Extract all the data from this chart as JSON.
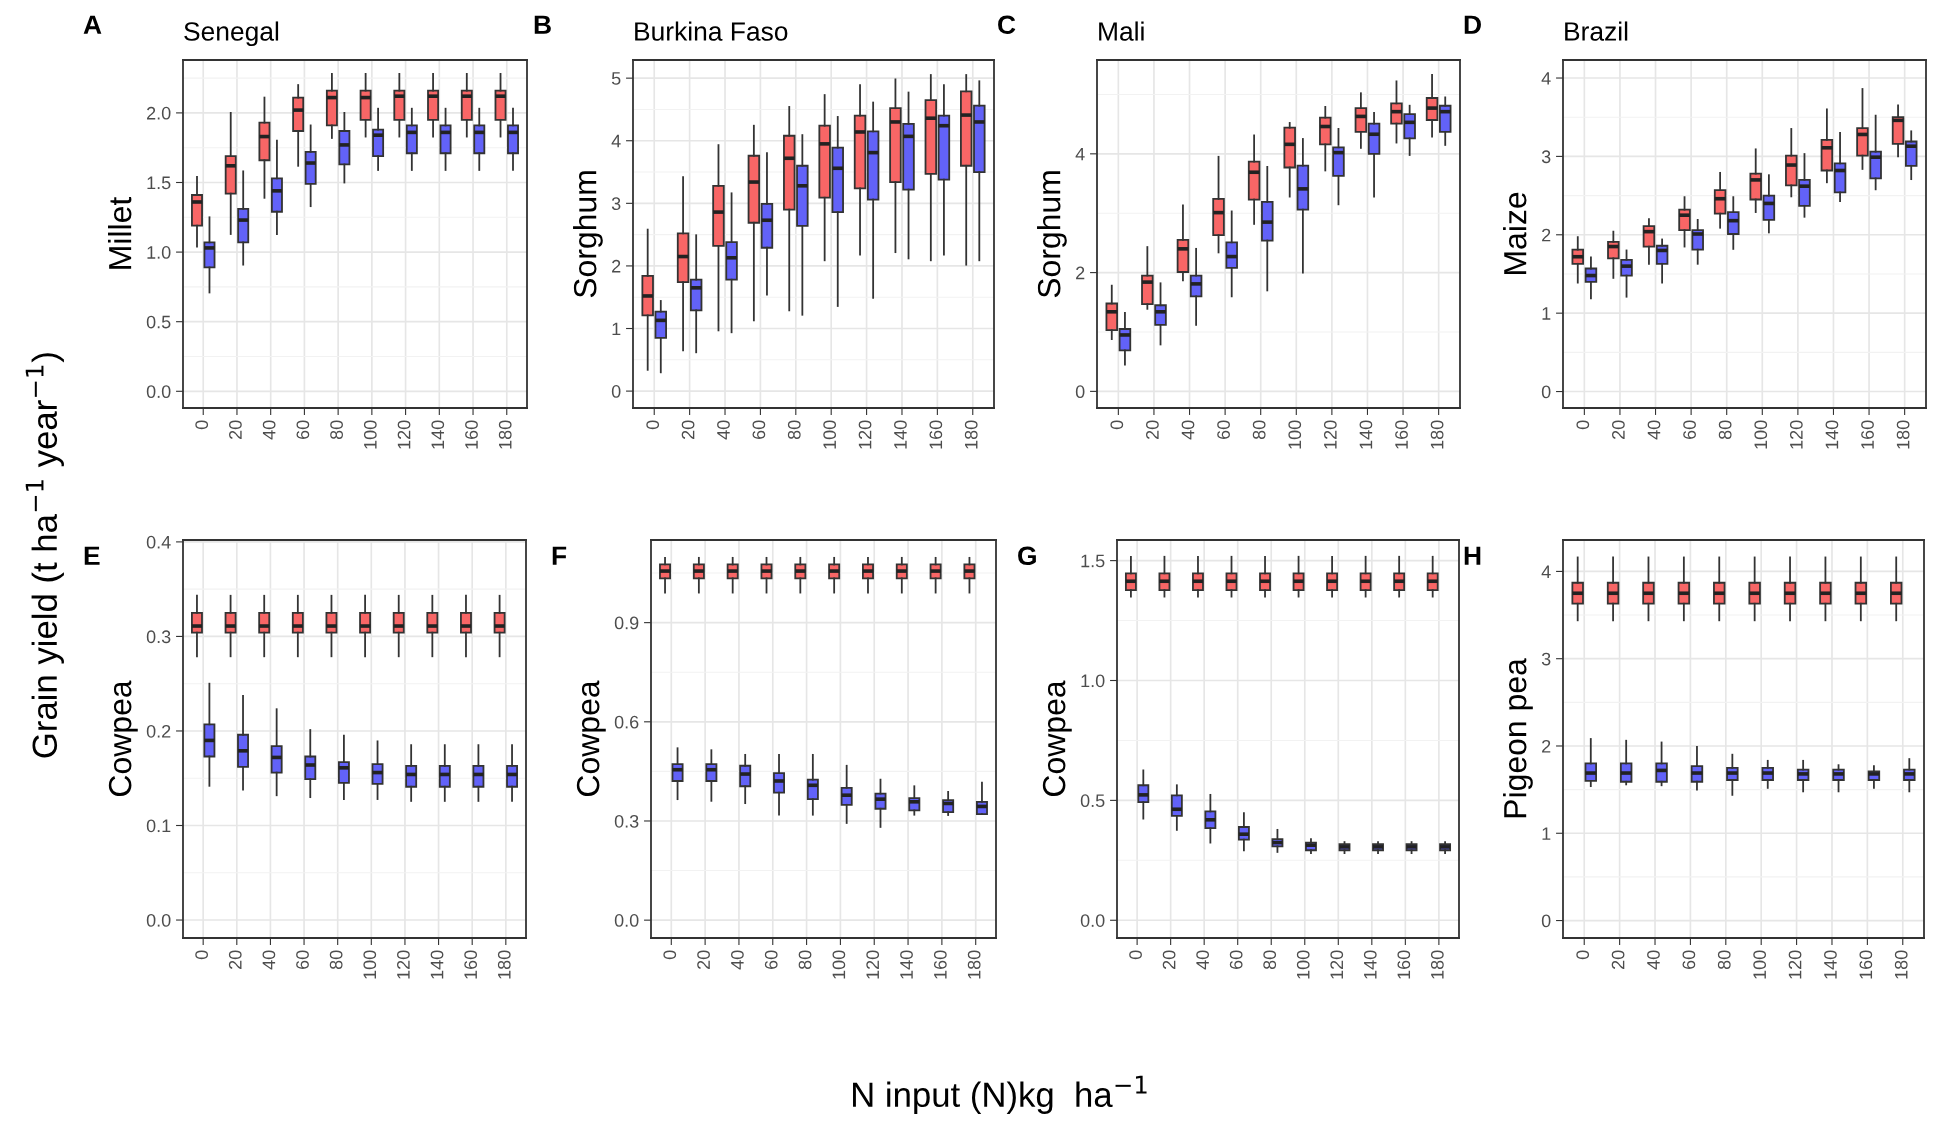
{
  "chart_data": [
    {
      "type": "box",
      "title": "Senegal",
      "ylabel": "Millet",
      "annotations": [
        "A",
        "Grain yield (t ha$^{−1}$ year$^{−1}$)",
        "N input (N)kg  ha$^{−1}$"
      ],
      "categories": [
        "0",
        "20",
        "40",
        "60",
        "80",
        "100",
        "120",
        "140",
        "160",
        "180"
      ],
      "ylim": [
        -0.12,
        2.38
      ],
      "yticks": [
        {
          "value": 0,
          "label": "0.0"
        },
        {
          "value": 0.5,
          "label": "0.5"
        },
        {
          "value": 1,
          "label": "1.0"
        },
        {
          "value": 1.5,
          "label": "1.5"
        },
        {
          "value": 2,
          "label": "2.0"
        }
      ],
      "grid": true,
      "series": [
        {
          "color": "#f86666",
          "boxes": [
            {
              "low": 1.04,
              "q1": 1.19,
              "median": 1.36,
              "q3": 1.41,
              "high": 1.54
            },
            {
              "low": 1.13,
              "q1": 1.42,
              "median": 1.62,
              "q3": 1.69,
              "high": 2.0
            },
            {
              "low": 1.39,
              "q1": 1.66,
              "median": 1.83,
              "q3": 1.93,
              "high": 2.11
            },
            {
              "low": 1.62,
              "q1": 1.87,
              "median": 2.02,
              "q3": 2.11,
              "high": 2.2
            },
            {
              "low": 1.82,
              "q1": 1.91,
              "median": 2.11,
              "q3": 2.16,
              "high": 2.28
            },
            {
              "low": 1.83,
              "q1": 1.95,
              "median": 2.11,
              "q3": 2.16,
              "high": 2.28
            },
            {
              "low": 1.83,
              "q1": 1.95,
              "median": 2.12,
              "q3": 2.16,
              "high": 2.28
            },
            {
              "low": 1.83,
              "q1": 1.95,
              "median": 2.12,
              "q3": 2.16,
              "high": 2.28
            },
            {
              "low": 1.83,
              "q1": 1.95,
              "median": 2.12,
              "q3": 2.16,
              "high": 2.28
            },
            {
              "low": 1.83,
              "q1": 1.95,
              "median": 2.12,
              "q3": 2.16,
              "high": 2.28
            }
          ]
        },
        {
          "color": "#6262f8",
          "boxes": [
            {
              "low": 0.71,
              "q1": 0.89,
              "median": 1.03,
              "q3": 1.07,
              "high": 1.25
            },
            {
              "low": 0.91,
              "q1": 1.07,
              "median": 1.23,
              "q3": 1.31,
              "high": 1.58
            },
            {
              "low": 1.13,
              "q1": 1.29,
              "median": 1.44,
              "q3": 1.53,
              "high": 1.8
            },
            {
              "low": 1.33,
              "q1": 1.49,
              "median": 1.64,
              "q3": 1.72,
              "high": 1.91
            },
            {
              "low": 1.5,
              "q1": 1.63,
              "median": 1.77,
              "q3": 1.87,
              "high": 2.0
            },
            {
              "low": 1.59,
              "q1": 1.69,
              "median": 1.84,
              "q3": 1.88,
              "high": 2.03
            },
            {
              "low": 1.59,
              "q1": 1.71,
              "median": 1.86,
              "q3": 1.91,
              "high": 2.03
            },
            {
              "low": 1.59,
              "q1": 1.71,
              "median": 1.86,
              "q3": 1.91,
              "high": 2.03
            },
            {
              "low": 1.59,
              "q1": 1.71,
              "median": 1.86,
              "q3": 1.91,
              "high": 2.03
            },
            {
              "low": 1.59,
              "q1": 1.71,
              "median": 1.86,
              "q3": 1.91,
              "high": 2.03
            }
          ]
        }
      ]
    },
    {
      "type": "box",
      "title": "Burkina Faso",
      "ylabel": "Sorghum",
      "annotations": [
        "B"
      ],
      "categories": [
        "0",
        "20",
        "40",
        "60",
        "80",
        "100",
        "120",
        "140",
        "160",
        "180"
      ],
      "ylim": [
        -0.27,
        5.29
      ],
      "yticks": [
        0,
        1,
        2,
        3,
        4,
        5
      ],
      "grid": true,
      "series": [
        {
          "color": "#f86666",
          "boxes": [
            {
              "low": 0.34,
              "q1": 1.21,
              "median": 1.52,
              "q3": 1.84,
              "high": 2.58
            },
            {
              "low": 0.65,
              "q1": 1.74,
              "median": 2.15,
              "q3": 2.52,
              "high": 3.42
            },
            {
              "low": 0.97,
              "q1": 2.32,
              "median": 2.86,
              "q3": 3.28,
              "high": 3.93
            },
            {
              "low": 1.13,
              "q1": 2.69,
              "median": 3.34,
              "q3": 3.76,
              "high": 4.24
            },
            {
              "low": 1.29,
              "q1": 2.9,
              "median": 3.72,
              "q3": 4.08,
              "high": 4.54
            },
            {
              "low": 2.09,
              "q1": 3.09,
              "median": 3.95,
              "q3": 4.24,
              "high": 4.73
            },
            {
              "low": 2.18,
              "q1": 3.24,
              "median": 4.14,
              "q3": 4.4,
              "high": 4.89
            },
            {
              "low": 2.22,
              "q1": 3.34,
              "median": 4.3,
              "q3": 4.52,
              "high": 4.98
            },
            {
              "low": 2.09,
              "q1": 3.47,
              "median": 4.36,
              "q3": 4.65,
              "high": 5.05
            },
            {
              "low": 2.02,
              "q1": 3.6,
              "median": 4.41,
              "q3": 4.79,
              "high": 5.05
            }
          ]
        },
        {
          "color": "#6262f8",
          "boxes": [
            {
              "low": 0.3,
              "q1": 0.85,
              "median": 1.13,
              "q3": 1.27,
              "high": 1.44
            },
            {
              "low": 0.62,
              "q1": 1.29,
              "median": 1.65,
              "q3": 1.78,
              "high": 2.49
            },
            {
              "low": 0.94,
              "q1": 1.78,
              "median": 2.13,
              "q3": 2.38,
              "high": 3.16
            },
            {
              "low": 1.54,
              "q1": 2.29,
              "median": 2.73,
              "q3": 2.99,
              "high": 3.8
            },
            {
              "low": 1.22,
              "q1": 2.64,
              "median": 3.28,
              "q3": 3.6,
              "high": 4.09
            },
            {
              "low": 1.36,
              "q1": 2.86,
              "median": 3.56,
              "q3": 3.89,
              "high": 4.38
            },
            {
              "low": 1.49,
              "q1": 3.06,
              "median": 3.81,
              "q3": 4.15,
              "high": 4.61
            },
            {
              "low": 2.12,
              "q1": 3.22,
              "median": 4.07,
              "q3": 4.27,
              "high": 4.77
            },
            {
              "low": 2.18,
              "q1": 3.38,
              "median": 4.24,
              "q3": 4.4,
              "high": 4.89
            },
            {
              "low": 2.09,
              "q1": 3.5,
              "median": 4.3,
              "q3": 4.56,
              "high": 4.95
            }
          ]
        }
      ]
    },
    {
      "type": "box",
      "title": "Mali",
      "ylabel": "Sorghum",
      "annotations": [
        "C"
      ],
      "categories": [
        "0",
        "20",
        "40",
        "60",
        "80",
        "100",
        "120",
        "140",
        "160",
        "180"
      ],
      "ylim": [
        -0.28,
        5.58
      ],
      "yticks": [
        0,
        2,
        4
      ],
      "grid": true,
      "series": [
        {
          "color": "#f86666",
          "boxes": [
            {
              "low": 0.88,
              "q1": 1.03,
              "median": 1.34,
              "q3": 1.48,
              "high": 1.78
            },
            {
              "low": 1.39,
              "q1": 1.47,
              "median": 1.84,
              "q3": 1.95,
              "high": 2.43
            },
            {
              "low": 1.87,
              "q1": 2.01,
              "median": 2.4,
              "q3": 2.55,
              "high": 3.13
            },
            {
              "low": 2.34,
              "q1": 2.63,
              "median": 3.01,
              "q3": 3.24,
              "high": 3.95
            },
            {
              "low": 2.82,
              "q1": 3.23,
              "median": 3.69,
              "q3": 3.87,
              "high": 4.31
            },
            {
              "low": 3.28,
              "q1": 3.77,
              "median": 4.16,
              "q3": 4.44,
              "high": 4.52
            },
            {
              "low": 3.72,
              "q1": 4.16,
              "median": 4.46,
              "q3": 4.61,
              "high": 4.79
            },
            {
              "low": 4.1,
              "q1": 4.37,
              "median": 4.63,
              "q3": 4.77,
              "high": 5.02
            },
            {
              "low": 4.19,
              "q1": 4.51,
              "median": 4.71,
              "q3": 4.85,
              "high": 5.22
            },
            {
              "low": 4.29,
              "q1": 4.57,
              "median": 4.77,
              "q3": 4.94,
              "high": 5.33
            }
          ]
        },
        {
          "color": "#6262f8",
          "boxes": [
            {
              "low": 0.45,
              "q1": 0.69,
              "median": 0.95,
              "q3": 1.05,
              "high": 1.32
            },
            {
              "low": 0.79,
              "q1": 1.12,
              "median": 1.34,
              "q3": 1.45,
              "high": 1.82
            },
            {
              "low": 1.12,
              "q1": 1.6,
              "median": 1.81,
              "q3": 1.95,
              "high": 2.4
            },
            {
              "low": 1.6,
              "q1": 2.08,
              "median": 2.27,
              "q3": 2.51,
              "high": 3.03
            },
            {
              "low": 1.7,
              "q1": 2.54,
              "median": 2.85,
              "q3": 3.19,
              "high": 3.78
            },
            {
              "low": 2.0,
              "q1": 3.06,
              "median": 3.41,
              "q3": 3.8,
              "high": 4.25
            },
            {
              "low": 3.15,
              "q1": 3.63,
              "median": 4.02,
              "q3": 4.11,
              "high": 4.42
            },
            {
              "low": 3.28,
              "q1": 4.0,
              "median": 4.33,
              "q3": 4.51,
              "high": 4.69
            },
            {
              "low": 3.98,
              "q1": 4.26,
              "median": 4.53,
              "q3": 4.67,
              "high": 4.81
            },
            {
              "low": 4.15,
              "q1": 4.37,
              "median": 4.71,
              "q3": 4.81,
              "high": 4.95
            }
          ]
        }
      ]
    },
    {
      "type": "box",
      "title": "Brazil",
      "ylabel": "Maize",
      "annotations": [
        "D"
      ],
      "categories": [
        "0",
        "20",
        "40",
        "60",
        "80",
        "100",
        "120",
        "140",
        "160",
        "180"
      ],
      "ylim": [
        -0.21,
        4.23
      ],
      "yticks": [
        0,
        1,
        2,
        3,
        4
      ],
      "grid": true,
      "series": [
        {
          "color": "#f86666",
          "boxes": [
            {
              "low": 1.39,
              "q1": 1.63,
              "median": 1.72,
              "q3": 1.81,
              "high": 1.97
            },
            {
              "low": 1.45,
              "q1": 1.7,
              "median": 1.85,
              "q3": 1.91,
              "high": 2.04
            },
            {
              "low": 1.63,
              "q1": 1.85,
              "median": 2.04,
              "q3": 2.11,
              "high": 2.2
            },
            {
              "low": 1.85,
              "q1": 2.06,
              "median": 2.25,
              "q3": 2.32,
              "high": 2.48
            },
            {
              "low": 2.09,
              "q1": 2.27,
              "median": 2.46,
              "q3": 2.57,
              "high": 2.79
            },
            {
              "low": 2.29,
              "q1": 2.45,
              "median": 2.7,
              "q3": 2.78,
              "high": 3.09
            },
            {
              "low": 2.49,
              "q1": 2.63,
              "median": 2.89,
              "q3": 3.01,
              "high": 3.35
            },
            {
              "low": 2.67,
              "q1": 2.82,
              "median": 3.11,
              "q3": 3.21,
              "high": 3.6
            },
            {
              "low": 2.84,
              "q1": 3.01,
              "median": 3.28,
              "q3": 3.36,
              "high": 3.86
            },
            {
              "low": 3.0,
              "q1": 3.16,
              "median": 3.46,
              "q3": 3.5,
              "high": 3.65
            }
          ]
        },
        {
          "color": "#6262f8",
          "boxes": [
            {
              "low": 1.19,
              "q1": 1.4,
              "median": 1.48,
              "q3": 1.57,
              "high": 1.71
            },
            {
              "low": 1.21,
              "q1": 1.48,
              "median": 1.6,
              "q3": 1.68,
              "high": 1.8
            },
            {
              "low": 1.39,
              "q1": 1.63,
              "median": 1.8,
              "q3": 1.86,
              "high": 1.94
            },
            {
              "low": 1.63,
              "q1": 1.81,
              "median": 2.01,
              "q3": 2.06,
              "high": 2.19
            },
            {
              "low": 1.82,
              "q1": 2.01,
              "median": 2.18,
              "q3": 2.29,
              "high": 2.48
            },
            {
              "low": 2.03,
              "q1": 2.19,
              "median": 2.4,
              "q3": 2.5,
              "high": 2.76
            },
            {
              "low": 2.23,
              "q1": 2.37,
              "median": 2.62,
              "q3": 2.7,
              "high": 3.03
            },
            {
              "low": 2.43,
              "q1": 2.54,
              "median": 2.82,
              "q3": 2.91,
              "high": 3.3
            },
            {
              "low": 2.58,
              "q1": 2.72,
              "median": 2.99,
              "q3": 3.06,
              "high": 3.52
            },
            {
              "low": 2.71,
              "q1": 2.88,
              "median": 3.13,
              "q3": 3.19,
              "high": 3.32
            }
          ]
        }
      ]
    },
    {
      "type": "box",
      "ylabel": "Cowpea",
      "annotations": [
        "E"
      ],
      "categories": [
        "0",
        "20",
        "40",
        "60",
        "80",
        "100",
        "120",
        "140",
        "160",
        "180"
      ],
      "ylim": [
        -0.019,
        0.402
      ],
      "yticks": [
        {
          "value": 0,
          "label": "0.0"
        },
        {
          "value": 0.1,
          "label": "0.1"
        },
        {
          "value": 0.2,
          "label": "0.2"
        },
        {
          "value": 0.3,
          "label": "0.3"
        },
        {
          "value": 0.4,
          "label": "0.4"
        }
      ],
      "grid": true,
      "series": [
        {
          "color": "#f86666",
          "boxes": [
            {
              "low": 0.279,
              "q1": 0.304,
              "median": 0.311,
              "q3": 0.325,
              "high": 0.343
            },
            {
              "low": 0.279,
              "q1": 0.304,
              "median": 0.311,
              "q3": 0.325,
              "high": 0.343
            },
            {
              "low": 0.279,
              "q1": 0.304,
              "median": 0.311,
              "q3": 0.325,
              "high": 0.343
            },
            {
              "low": 0.279,
              "q1": 0.304,
              "median": 0.311,
              "q3": 0.325,
              "high": 0.343
            },
            {
              "low": 0.279,
              "q1": 0.304,
              "median": 0.311,
              "q3": 0.325,
              "high": 0.343
            },
            {
              "low": 0.279,
              "q1": 0.304,
              "median": 0.311,
              "q3": 0.325,
              "high": 0.343
            },
            {
              "low": 0.279,
              "q1": 0.304,
              "median": 0.311,
              "q3": 0.325,
              "high": 0.343
            },
            {
              "low": 0.279,
              "q1": 0.304,
              "median": 0.311,
              "q3": 0.325,
              "high": 0.343
            },
            {
              "low": 0.279,
              "q1": 0.304,
              "median": 0.311,
              "q3": 0.325,
              "high": 0.343
            },
            {
              "low": 0.279,
              "q1": 0.304,
              "median": 0.311,
              "q3": 0.325,
              "high": 0.343
            }
          ]
        },
        {
          "color": "#6262f8",
          "boxes": [
            {
              "low": 0.142,
              "q1": 0.173,
              "median": 0.19,
              "q3": 0.207,
              "high": 0.25
            },
            {
              "low": 0.138,
              "q1": 0.162,
              "median": 0.179,
              "q3": 0.196,
              "high": 0.237
            },
            {
              "low": 0.132,
              "q1": 0.156,
              "median": 0.172,
              "q3": 0.184,
              "high": 0.223
            },
            {
              "low": 0.13,
              "q1": 0.149,
              "median": 0.164,
              "q3": 0.173,
              "high": 0.201
            },
            {
              "low": 0.128,
              "q1": 0.145,
              "median": 0.161,
              "q3": 0.167,
              "high": 0.195
            },
            {
              "low": 0.128,
              "q1": 0.144,
              "median": 0.156,
              "q3": 0.165,
              "high": 0.189
            },
            {
              "low": 0.126,
              "q1": 0.141,
              "median": 0.154,
              "q3": 0.163,
              "high": 0.185
            },
            {
              "low": 0.126,
              "q1": 0.141,
              "median": 0.154,
              "q3": 0.163,
              "high": 0.185
            },
            {
              "low": 0.126,
              "q1": 0.141,
              "median": 0.154,
              "q3": 0.163,
              "high": 0.185
            },
            {
              "low": 0.126,
              "q1": 0.141,
              "median": 0.154,
              "q3": 0.163,
              "high": 0.185
            }
          ]
        }
      ]
    },
    {
      "type": "box",
      "ylabel": "Cowpea",
      "annotations": [
        "F"
      ],
      "categories": [
        "0",
        "20",
        "40",
        "60",
        "80",
        "100",
        "120",
        "140",
        "160",
        "180"
      ],
      "ylim": [
        -0.054,
        1.15
      ],
      "yticks": [
        {
          "value": 0,
          "label": "0.0"
        },
        {
          "value": 0.3,
          "label": "0.3"
        },
        {
          "value": 0.6,
          "label": "0.6"
        },
        {
          "value": 0.9,
          "label": "0.9"
        }
      ],
      "grid": true,
      "series": [
        {
          "color": "#f86666",
          "boxes": [
            {
              "low": 0.991,
              "q1": 1.034,
              "median": 1.056,
              "q3": 1.076,
              "high": 1.096
            },
            {
              "low": 0.991,
              "q1": 1.034,
              "median": 1.056,
              "q3": 1.076,
              "high": 1.096
            },
            {
              "low": 0.991,
              "q1": 1.034,
              "median": 1.056,
              "q3": 1.076,
              "high": 1.096
            },
            {
              "low": 0.991,
              "q1": 1.034,
              "median": 1.056,
              "q3": 1.076,
              "high": 1.096
            },
            {
              "low": 0.991,
              "q1": 1.034,
              "median": 1.056,
              "q3": 1.076,
              "high": 1.096
            },
            {
              "low": 0.991,
              "q1": 1.034,
              "median": 1.056,
              "q3": 1.076,
              "high": 1.096
            },
            {
              "low": 0.991,
              "q1": 1.034,
              "median": 1.056,
              "q3": 1.076,
              "high": 1.096
            },
            {
              "low": 0.991,
              "q1": 1.034,
              "median": 1.056,
              "q3": 1.076,
              "high": 1.096
            },
            {
              "low": 0.991,
              "q1": 1.034,
              "median": 1.056,
              "q3": 1.076,
              "high": 1.096
            },
            {
              "low": 0.991,
              "q1": 1.034,
              "median": 1.056,
              "q3": 1.076,
              "high": 1.096
            }
          ]
        },
        {
          "color": "#6262f8",
          "boxes": [
            {
              "low": 0.366,
              "q1": 0.421,
              "median": 0.455,
              "q3": 0.472,
              "high": 0.52
            },
            {
              "low": 0.361,
              "q1": 0.421,
              "median": 0.455,
              "q3": 0.472,
              "high": 0.514
            },
            {
              "low": 0.354,
              "q1": 0.405,
              "median": 0.442,
              "q3": 0.467,
              "high": 0.5
            },
            {
              "low": 0.319,
              "q1": 0.386,
              "median": 0.421,
              "q3": 0.445,
              "high": 0.5
            },
            {
              "low": 0.319,
              "q1": 0.366,
              "median": 0.408,
              "q3": 0.425,
              "high": 0.5
            },
            {
              "low": 0.294,
              "q1": 0.349,
              "median": 0.378,
              "q3": 0.4,
              "high": 0.467
            },
            {
              "low": 0.282,
              "q1": 0.337,
              "median": 0.366,
              "q3": 0.383,
              "high": 0.425
            },
            {
              "low": 0.319,
              "q1": 0.332,
              "median": 0.358,
              "q3": 0.369,
              "high": 0.405
            },
            {
              "low": 0.318,
              "q1": 0.327,
              "median": 0.353,
              "q3": 0.363,
              "high": 0.388
            },
            {
              "low": 0.321,
              "q1": 0.321,
              "median": 0.344,
              "q3": 0.358,
              "high": 0.416
            }
          ]
        }
      ]
    },
    {
      "type": "box",
      "ylabel": "Cowpea",
      "annotations": [
        "G"
      ],
      "categories": [
        "0",
        "20",
        "40",
        "60",
        "80",
        "100",
        "120",
        "140",
        "160",
        "180"
      ],
      "ylim": [
        -0.074,
        1.586
      ],
      "yticks": [
        {
          "value": 0,
          "label": "0.0"
        },
        {
          "value": 0.5,
          "label": "0.5"
        },
        {
          "value": 1,
          "label": "1.0"
        },
        {
          "value": 1.5,
          "label": "1.5"
        }
      ],
      "grid": true,
      "series": [
        {
          "color": "#f86666",
          "boxes": [
            {
              "low": 1.35,
              "q1": 1.377,
              "median": 1.414,
              "q3": 1.447,
              "high": 1.516
            },
            {
              "low": 1.35,
              "q1": 1.377,
              "median": 1.414,
              "q3": 1.447,
              "high": 1.516
            },
            {
              "low": 1.35,
              "q1": 1.377,
              "median": 1.414,
              "q3": 1.447,
              "high": 1.516
            },
            {
              "low": 1.35,
              "q1": 1.377,
              "median": 1.414,
              "q3": 1.447,
              "high": 1.516
            },
            {
              "low": 1.35,
              "q1": 1.377,
              "median": 1.414,
              "q3": 1.447,
              "high": 1.516
            },
            {
              "low": 1.35,
              "q1": 1.377,
              "median": 1.414,
              "q3": 1.447,
              "high": 1.516
            },
            {
              "low": 1.35,
              "q1": 1.377,
              "median": 1.414,
              "q3": 1.447,
              "high": 1.516
            },
            {
              "low": 1.35,
              "q1": 1.377,
              "median": 1.414,
              "q3": 1.447,
              "high": 1.516
            },
            {
              "low": 1.35,
              "q1": 1.377,
              "median": 1.414,
              "q3": 1.447,
              "high": 1.516
            },
            {
              "low": 1.35,
              "q1": 1.377,
              "median": 1.414,
              "q3": 1.447,
              "high": 1.516
            }
          ]
        },
        {
          "color": "#6262f8",
          "boxes": [
            {
              "low": 0.424,
              "q1": 0.493,
              "median": 0.523,
              "q3": 0.563,
              "high": 0.625
            },
            {
              "low": 0.377,
              "q1": 0.435,
              "median": 0.463,
              "q3": 0.521,
              "high": 0.563
            },
            {
              "low": 0.324,
              "q1": 0.384,
              "median": 0.419,
              "q3": 0.454,
              "high": 0.523
            },
            {
              "low": 0.292,
              "q1": 0.336,
              "median": 0.359,
              "q3": 0.389,
              "high": 0.447
            },
            {
              "low": 0.285,
              "q1": 0.308,
              "median": 0.324,
              "q3": 0.338,
              "high": 0.377
            },
            {
              "low": 0.28,
              "q1": 0.292,
              "median": 0.313,
              "q3": 0.324,
              "high": 0.338
            },
            {
              "low": 0.28,
              "q1": 0.292,
              "median": 0.306,
              "q3": 0.317,
              "high": 0.326
            },
            {
              "low": 0.28,
              "q1": 0.292,
              "median": 0.306,
              "q3": 0.317,
              "high": 0.326
            },
            {
              "low": 0.28,
              "q1": 0.292,
              "median": 0.306,
              "q3": 0.317,
              "high": 0.326
            },
            {
              "low": 0.28,
              "q1": 0.292,
              "median": 0.306,
              "q3": 0.317,
              "high": 0.326
            }
          ]
        }
      ]
    },
    {
      "type": "box",
      "ylabel": "Pigeon pea",
      "annotations": [
        "H"
      ],
      "categories": [
        "0",
        "20",
        "40",
        "60",
        "80",
        "100",
        "120",
        "140",
        "160",
        "180"
      ],
      "ylim": [
        -0.2,
        4.36
      ],
      "yticks": [
        0,
        1,
        2,
        3,
        4
      ],
      "grid": true,
      "series": [
        {
          "color": "#f86666",
          "boxes": [
            {
              "low": 3.44,
              "q1": 3.63,
              "median": 3.75,
              "q3": 3.87,
              "high": 4.16
            },
            {
              "low": 3.44,
              "q1": 3.63,
              "median": 3.75,
              "q3": 3.87,
              "high": 4.16
            },
            {
              "low": 3.44,
              "q1": 3.63,
              "median": 3.75,
              "q3": 3.87,
              "high": 4.16
            },
            {
              "low": 3.44,
              "q1": 3.63,
              "median": 3.75,
              "q3": 3.87,
              "high": 4.16
            },
            {
              "low": 3.44,
              "q1": 3.63,
              "median": 3.75,
              "q3": 3.87,
              "high": 4.16
            },
            {
              "low": 3.44,
              "q1": 3.63,
              "median": 3.75,
              "q3": 3.87,
              "high": 4.16
            },
            {
              "low": 3.44,
              "q1": 3.63,
              "median": 3.75,
              "q3": 3.87,
              "high": 4.16
            },
            {
              "low": 3.44,
              "q1": 3.63,
              "median": 3.75,
              "q3": 3.87,
              "high": 4.16
            },
            {
              "low": 3.44,
              "q1": 3.63,
              "median": 3.75,
              "q3": 3.87,
              "high": 4.16
            },
            {
              "low": 3.44,
              "q1": 3.63,
              "median": 3.75,
              "q3": 3.87,
              "high": 4.16
            }
          ]
        },
        {
          "color": "#6262f8",
          "boxes": [
            {
              "low": 1.54,
              "q1": 1.6,
              "median": 1.69,
              "q3": 1.8,
              "high": 2.08
            },
            {
              "low": 1.56,
              "q1": 1.59,
              "median": 1.69,
              "q3": 1.8,
              "high": 2.06
            },
            {
              "low": 1.55,
              "q1": 1.59,
              "median": 1.72,
              "q3": 1.8,
              "high": 2.04
            },
            {
              "low": 1.5,
              "q1": 1.59,
              "median": 1.69,
              "q3": 1.77,
              "high": 1.99
            },
            {
              "low": 1.44,
              "q1": 1.61,
              "median": 1.69,
              "q3": 1.75,
              "high": 1.9
            },
            {
              "low": 1.52,
              "q1": 1.61,
              "median": 1.69,
              "q3": 1.75,
              "high": 1.83
            },
            {
              "low": 1.48,
              "q1": 1.61,
              "median": 1.68,
              "q3": 1.73,
              "high": 1.83
            },
            {
              "low": 1.48,
              "q1": 1.61,
              "median": 1.68,
              "q3": 1.73,
              "high": 1.78
            },
            {
              "low": 1.52,
              "q1": 1.61,
              "median": 1.68,
              "q3": 1.71,
              "high": 1.77
            },
            {
              "low": 1.48,
              "q1": 1.61,
              "median": 1.68,
              "q3": 1.73,
              "high": 1.85
            }
          ]
        }
      ]
    }
  ]
}
